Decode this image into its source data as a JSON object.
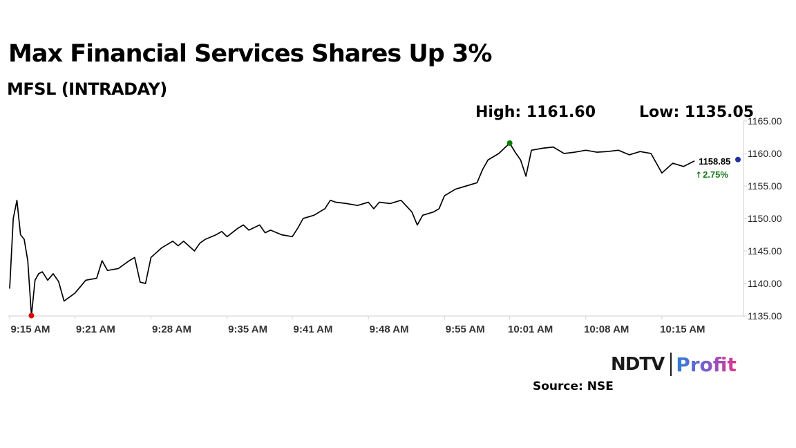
{
  "header": {
    "title": "Max Financial Services Shares Up 3%",
    "subtitle": "MFSL (INTRADAY)",
    "high_label": "High: 1161.60",
    "low_label": "Low: 1135.05"
  },
  "branding": {
    "ndtv": "NDTV",
    "profit": "Profit",
    "source": "Source: NSE"
  },
  "colors": {
    "line": "#000000",
    "high_marker": "#008000",
    "low_marker": "#e00000",
    "last_marker": "#1f2fa8",
    "change_up": "#1a7a1a",
    "axis": "#cfcfcf"
  },
  "chart_data": {
    "type": "line",
    "title": "Max Financial Services Shares Up 3%",
    "subtitle": "MFSL (INTRADAY)",
    "xlabel": "",
    "ylabel": "",
    "ylim": [
      1135,
      1165
    ],
    "x_range": [
      "9:15 AM",
      "10:22 AM"
    ],
    "y_ticks": [
      "1165.00",
      "1160.00",
      "1155.00",
      "1150.00",
      "1145.00",
      "1140.00",
      "1135.00"
    ],
    "x_ticks": [
      "9:15 AM",
      "9:21 AM",
      "9:28 AM",
      "9:35 AM",
      "9:41 AM",
      "9:48 AM",
      "9:55 AM",
      "10:01 AM",
      "10:08 AM",
      "10:15 AM"
    ],
    "grid": false,
    "high": {
      "time": "10:01 AM",
      "value": 1161.6
    },
    "low": {
      "time": "9:17 AM",
      "value": 1135.05
    },
    "last": {
      "label": "1158.85",
      "value": 1158.85,
      "change": "2.75%"
    },
    "series": [
      {
        "values": [
          [
            "9:15 AM",
            1139.2
          ],
          [
            "9:15 AM",
            1150.0
          ],
          [
            "9:15 AM",
            1152.8
          ],
          [
            "9:16 AM",
            1147.5
          ],
          [
            "9:16 AM",
            1146.8
          ],
          [
            "9:16 AM",
            1143.5
          ],
          [
            "9:17 AM",
            1135.05
          ],
          [
            "9:17 AM",
            1140.5
          ],
          [
            "9:17 AM",
            1141.5
          ],
          [
            "9:18 AM",
            1141.8
          ],
          [
            "9:18 AM",
            1140.5
          ],
          [
            "9:19 AM",
            1141.5
          ],
          [
            "9:19 AM",
            1140.3
          ],
          [
            "9:20 AM",
            1137.3
          ],
          [
            "9:21 AM",
            1138.5
          ],
          [
            "9:21 AM",
            1139.5
          ],
          [
            "9:22 AM",
            1140.5
          ],
          [
            "9:23 AM",
            1140.8
          ],
          [
            "9:23 AM",
            1143.5
          ],
          [
            "9:24 AM",
            1142.0
          ],
          [
            "9:25 AM",
            1142.3
          ],
          [
            "9:26 AM",
            1143.5
          ],
          [
            "9:26 AM",
            1144.0
          ],
          [
            "9:27 AM",
            1140.2
          ],
          [
            "9:27 AM",
            1140.0
          ],
          [
            "9:28 AM",
            1144.0
          ],
          [
            "9:29 AM",
            1145.5
          ],
          [
            "9:30 AM",
            1146.5
          ],
          [
            "9:30 AM",
            1145.8
          ],
          [
            "9:31 AM",
            1146.5
          ],
          [
            "9:32 AM",
            1145.0
          ],
          [
            "9:32 AM",
            1146.2
          ],
          [
            "9:33 AM",
            1146.8
          ],
          [
            "9:34 AM",
            1147.5
          ],
          [
            "9:34 AM",
            1148.0
          ],
          [
            "9:35 AM",
            1147.2
          ],
          [
            "9:36 AM",
            1148.5
          ],
          [
            "9:36 AM",
            1149.0
          ],
          [
            "9:37 AM",
            1148.2
          ],
          [
            "9:38 AM",
            1149.0
          ],
          [
            "9:38 AM",
            1147.8
          ],
          [
            "9:39 AM",
            1148.2
          ],
          [
            "9:40 AM",
            1147.5
          ],
          [
            "9:41 AM",
            1147.2
          ],
          [
            "9:41 AM",
            1148.5
          ],
          [
            "9:42 AM",
            1150.0
          ],
          [
            "9:43 AM",
            1150.5
          ],
          [
            "9:44 AM",
            1151.5
          ],
          [
            "9:44 AM",
            1152.8
          ],
          [
            "9:45 AM",
            1152.5
          ],
          [
            "9:46 AM",
            1152.3
          ],
          [
            "9:47 AM",
            1152.0
          ],
          [
            "9:48 AM",
            1152.5
          ],
          [
            "9:48 AM",
            1151.5
          ],
          [
            "9:49 AM",
            1152.5
          ],
          [
            "9:50 AM",
            1152.3
          ],
          [
            "9:51 AM",
            1152.8
          ],
          [
            "9:52 AM",
            1151.0
          ],
          [
            "9:52 AM",
            1149.0
          ],
          [
            "9:53 AM",
            1150.5
          ],
          [
            "9:54 AM",
            1151.0
          ],
          [
            "9:54 AM",
            1151.5
          ],
          [
            "9:55 AM",
            1153.5
          ],
          [
            "9:56 AM",
            1154.5
          ],
          [
            "9:57 AM",
            1155.0
          ],
          [
            "9:58 AM",
            1155.5
          ],
          [
            "9:58 AM",
            1157.5
          ],
          [
            "9:59 AM",
            1159.0
          ],
          [
            "10:00 AM",
            1160.0
          ],
          [
            "10:01 AM",
            1161.6
          ],
          [
            "10:01 AM",
            1160.2
          ],
          [
            "10:02 AM",
            1159.0
          ],
          [
            "10:02 AM",
            1156.5
          ],
          [
            "10:03 AM",
            1160.5
          ],
          [
            "10:04 AM",
            1160.8
          ],
          [
            "10:05 AM",
            1161.0
          ],
          [
            "10:06 AM",
            1160.0
          ],
          [
            "10:07 AM",
            1160.2
          ],
          [
            "10:08 AM",
            1160.5
          ],
          [
            "10:09 AM",
            1160.2
          ],
          [
            "10:10 AM",
            1160.3
          ],
          [
            "10:11 AM",
            1160.5
          ],
          [
            "10:12 AM",
            1159.8
          ],
          [
            "10:13 AM",
            1160.3
          ],
          [
            "10:14 AM",
            1160.0
          ],
          [
            "10:15 AM",
            1157.0
          ],
          [
            "10:16 AM",
            1158.5
          ],
          [
            "10:17 AM",
            1158.0
          ],
          [
            "10:18 AM",
            1158.85
          ]
        ]
      }
    ]
  }
}
